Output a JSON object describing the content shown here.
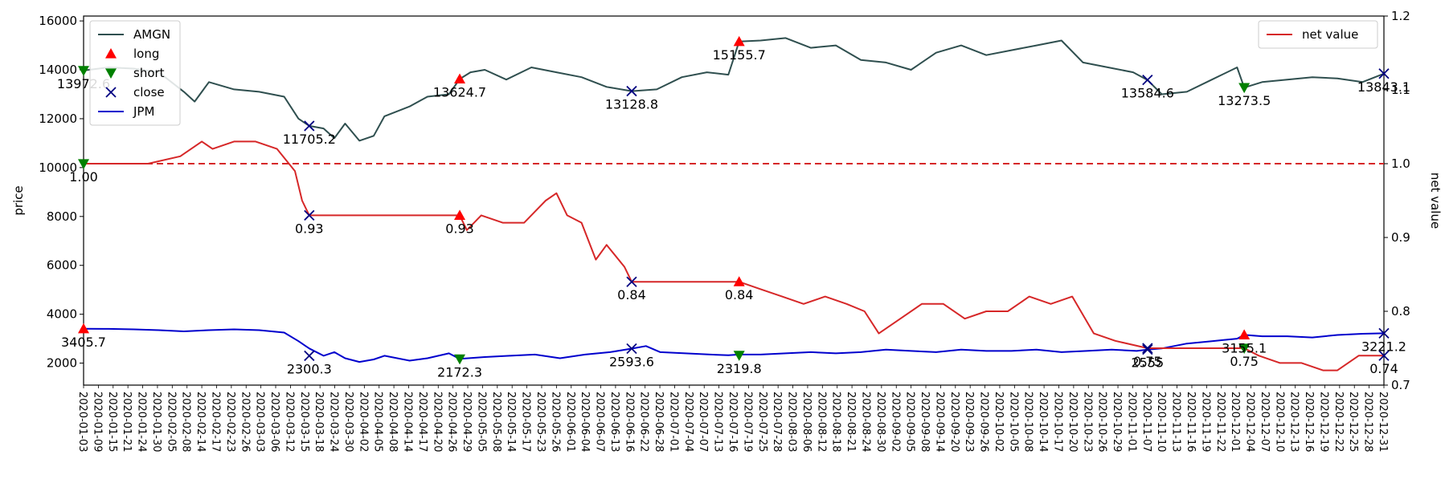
{
  "chart_data": {
    "type": "line",
    "xlabel": "",
    "ylabel": "price",
    "ylabel_right": "net value",
    "ylim": [
      1100,
      16200
    ],
    "ylim_right": [
      0.7,
      1.2
    ],
    "yticks": [
      2000,
      4000,
      6000,
      8000,
      10000,
      12000,
      14000,
      16000
    ],
    "yticks_right": [
      0.7,
      0.8,
      0.9,
      1.0,
      1.1,
      1.2
    ],
    "yticks_right_labels": [
      "0.7",
      "0.8",
      "0.9",
      "1.0",
      "1.1",
      "1.2"
    ],
    "x_start": "2020-01-03",
    "x_end": "2020-12-31",
    "x_tick_labels": [
      "2020-01-03",
      "2020-01-09",
      "2020-01-15",
      "2020-01-21",
      "2020-01-24",
      "2020-01-30",
      "2020-02-05",
      "2020-02-08",
      "2020-02-14",
      "2020-02-17",
      "2020-02-23",
      "2020-02-26",
      "2020-03-03",
      "2020-03-06",
      "2020-03-12",
      "2020-03-15",
      "2020-03-18",
      "2020-03-24",
      "2020-03-30",
      "2020-04-02",
      "2020-04-05",
      "2020-04-08",
      "2020-04-14",
      "2020-04-17",
      "2020-04-20",
      "2020-04-26",
      "2020-04-29",
      "2020-05-05",
      "2020-05-08",
      "2020-05-14",
      "2020-05-17",
      "2020-05-23",
      "2020-05-26",
      "2020-06-01",
      "2020-06-04",
      "2020-06-07",
      "2020-06-13",
      "2020-06-16",
      "2020-06-22",
      "2020-06-28",
      "2020-07-01",
      "2020-07-04",
      "2020-07-07",
      "2020-07-13",
      "2020-07-16",
      "2020-07-19",
      "2020-07-25",
      "2020-07-28",
      "2020-08-03",
      "2020-08-06",
      "2020-08-12",
      "2020-08-18",
      "2020-08-21",
      "2020-08-24",
      "2020-08-30",
      "2020-09-02",
      "2020-09-05",
      "2020-09-08",
      "2020-09-14",
      "2020-09-20",
      "2020-09-23",
      "2020-09-26",
      "2020-10-02",
      "2020-10-05",
      "2020-10-08",
      "2020-10-14",
      "2020-10-17",
      "2020-10-20",
      "2020-10-23",
      "2020-10-26",
      "2020-10-29",
      "2020-11-01",
      "2020-11-07",
      "2020-11-10",
      "2020-11-13",
      "2020-11-16",
      "2020-11-19",
      "2020-11-22",
      "2020-12-01",
      "2020-12-04",
      "2020-12-07",
      "2020-12-10",
      "2020-12-13",
      "2020-12-16",
      "2020-12-19",
      "2020-12-22",
      "2020-12-25",
      "2020-12-28",
      "2020-12-31"
    ],
    "legend_left": {
      "placement": "top-left",
      "entries": [
        {
          "label": "AMGN",
          "kind": "line",
          "color": "#2f4f4f"
        },
        {
          "label": "long",
          "kind": "marker-up",
          "color": "#ff0000"
        },
        {
          "label": "short",
          "kind": "marker-down",
          "color": "#008000"
        },
        {
          "label": "close",
          "kind": "marker-x",
          "color": "#000080"
        },
        {
          "label": "JPM",
          "kind": "line",
          "color": "#0000cd"
        }
      ]
    },
    "legend_right": {
      "placement": "top-right",
      "entries": [
        {
          "label": "net value",
          "kind": "line",
          "color": "#d62728"
        }
      ]
    },
    "reference_line": {
      "axis": "right",
      "y": 1.0,
      "style": "dashed",
      "color": "#d62728"
    },
    "series": [
      {
        "name": "AMGN",
        "axis": "left",
        "color": "#2f4f4f",
        "x": [
          "2020-01-03",
          "2020-01-10",
          "2020-01-17",
          "2020-01-24",
          "2020-01-31",
          "2020-02-03",
          "2020-02-07",
          "2020-02-14",
          "2020-02-21",
          "2020-02-28",
          "2020-03-03",
          "2020-03-06",
          "2020-03-10",
          "2020-03-13",
          "2020-03-16",
          "2020-03-20",
          "2020-03-24",
          "2020-03-27",
          "2020-04-03",
          "2020-04-08",
          "2020-04-14",
          "2020-04-17",
          "2020-04-20",
          "2020-04-24",
          "2020-04-30",
          "2020-05-07",
          "2020-05-14",
          "2020-05-21",
          "2020-05-28",
          "2020-06-04",
          "2020-06-11",
          "2020-06-18",
          "2020-06-25",
          "2020-07-01",
          "2020-07-04",
          "2020-07-10",
          "2020-07-17",
          "2020-07-24",
          "2020-07-31",
          "2020-08-07",
          "2020-08-14",
          "2020-08-21",
          "2020-08-28",
          "2020-09-04",
          "2020-09-11",
          "2020-09-18",
          "2020-09-25",
          "2020-10-02",
          "2020-10-08",
          "2020-10-15",
          "2020-10-22",
          "2020-10-26",
          "2020-10-30",
          "2020-11-06",
          "2020-11-13",
          "2020-11-20",
          "2020-11-22",
          "2020-11-27",
          "2020-12-04",
          "2020-12-11",
          "2020-12-18",
          "2020-12-25",
          "2020-12-31"
        ],
        "values": [
          13972.6,
          14100,
          14050,
          13900,
          13100,
          12700,
          13500,
          13200,
          13100,
          12900,
          12000,
          11705.2,
          11600,
          11200,
          11800,
          11100,
          11300,
          12100,
          12500,
          12900,
          13000,
          13624.7,
          13900,
          14000,
          13600,
          14100,
          13900,
          13700,
          13300,
          13128.8,
          13200,
          13700,
          13900,
          13800,
          15155.7,
          15200,
          15300,
          14900,
          15000,
          14400,
          14300,
          14000,
          14700,
          15000,
          14600,
          14800,
          15000,
          15200,
          14300,
          14100,
          13900,
          13584.6,
          13000,
          13100,
          13600,
          14100,
          13273.5,
          13500,
          13600,
          13700,
          13650,
          13500,
          13843.1
        ]
      },
      {
        "name": "JPM",
        "axis": "left",
        "color": "#0000cd",
        "x": [
          "2020-01-03",
          "2020-01-10",
          "2020-01-17",
          "2020-01-24",
          "2020-01-31",
          "2020-02-07",
          "2020-02-14",
          "2020-02-21",
          "2020-02-28",
          "2020-03-03",
          "2020-03-06",
          "2020-03-10",
          "2020-03-13",
          "2020-03-16",
          "2020-03-20",
          "2020-03-24",
          "2020-03-27",
          "2020-04-03",
          "2020-04-08",
          "2020-04-14",
          "2020-04-17",
          "2020-04-24",
          "2020-05-01",
          "2020-05-08",
          "2020-05-15",
          "2020-05-22",
          "2020-05-29",
          "2020-06-04",
          "2020-06-08",
          "2020-06-12",
          "2020-06-19",
          "2020-06-26",
          "2020-07-01",
          "2020-07-04",
          "2020-07-10",
          "2020-07-17",
          "2020-07-24",
          "2020-07-31",
          "2020-08-07",
          "2020-08-14",
          "2020-08-21",
          "2020-08-28",
          "2020-09-04",
          "2020-09-11",
          "2020-09-18",
          "2020-09-25",
          "2020-10-02",
          "2020-10-09",
          "2020-10-16",
          "2020-10-23",
          "2020-10-26",
          "2020-10-30",
          "2020-11-06",
          "2020-11-13",
          "2020-11-20",
          "2020-11-22",
          "2020-11-27",
          "2020-12-04",
          "2020-12-11",
          "2020-12-18",
          "2020-12-25",
          "2020-12-31"
        ],
        "values": [
          3405.7,
          3400,
          3380,
          3350,
          3300,
          3350,
          3380,
          3350,
          3250,
          2900,
          2600,
          2300.3,
          2450,
          2200,
          2050,
          2150,
          2300,
          2100,
          2200,
          2400,
          2172.3,
          2250,
          2300,
          2350,
          2200,
          2350,
          2450,
          2593.6,
          2700,
          2450,
          2400,
          2350,
          2319.8,
          2350,
          2350,
          2400,
          2450,
          2400,
          2450,
          2550,
          2500,
          2450,
          2550,
          2500,
          2500,
          2550,
          2450,
          2500,
          2550,
          2500,
          2555,
          2600,
          2800,
          2900,
          3000,
          3155.1,
          3100,
          3100,
          3050,
          3150,
          3200,
          3221.2
        ]
      },
      {
        "name": "net value",
        "axis": "right",
        "color": "#d62728",
        "x": [
          "2020-01-03",
          "2020-01-09",
          "2020-01-15",
          "2020-01-21",
          "2020-01-30",
          "2020-02-05",
          "2020-02-08",
          "2020-02-14",
          "2020-02-20",
          "2020-02-26",
          "2020-03-02",
          "2020-03-04",
          "2020-03-06",
          "2020-04-17",
          "2020-04-19",
          "2020-04-23",
          "2020-04-29",
          "2020-05-05",
          "2020-05-11",
          "2020-05-14",
          "2020-05-17",
          "2020-05-21",
          "2020-05-25",
          "2020-05-28",
          "2020-06-02",
          "2020-06-04",
          "2020-07-04",
          "2020-07-10",
          "2020-07-16",
          "2020-07-22",
          "2020-07-28",
          "2020-08-03",
          "2020-08-08",
          "2020-08-12",
          "2020-08-18",
          "2020-08-24",
          "2020-08-30",
          "2020-09-05",
          "2020-09-11",
          "2020-09-17",
          "2020-09-23",
          "2020-09-29",
          "2020-10-05",
          "2020-10-11",
          "2020-10-17",
          "2020-10-26",
          "2020-11-22",
          "2020-11-26",
          "2020-12-02",
          "2020-12-08",
          "2020-12-14",
          "2020-12-18",
          "2020-12-24",
          "2020-12-31"
        ],
        "values": [
          1.0,
          1.0,
          1.0,
          1.0,
          1.01,
          1.03,
          1.02,
          1.03,
          1.03,
          1.02,
          0.99,
          0.95,
          0.93,
          0.93,
          0.91,
          0.93,
          0.92,
          0.92,
          0.95,
          0.96,
          0.93,
          0.92,
          0.87,
          0.89,
          0.86,
          0.84,
          0.84,
          0.83,
          0.82,
          0.81,
          0.82,
          0.81,
          0.8,
          0.77,
          0.79,
          0.81,
          0.81,
          0.79,
          0.8,
          0.8,
          0.82,
          0.81,
          0.82,
          0.77,
          0.76,
          0.75,
          0.75,
          0.74,
          0.73,
          0.73,
          0.72,
          0.72,
          0.74,
          0.74
        ]
      }
    ],
    "markers": [
      {
        "type": "short",
        "axis": "left",
        "x": "2020-01-03",
        "y": 13972.6,
        "label": "13972.6"
      },
      {
        "type": "close",
        "axis": "left",
        "x": "2020-03-06",
        "y": 11705.2,
        "label": "11705.2"
      },
      {
        "type": "long",
        "axis": "left",
        "x": "2020-04-17",
        "y": 13624.7,
        "label": "13624.7"
      },
      {
        "type": "close",
        "axis": "left",
        "x": "2020-06-04",
        "y": 13128.8,
        "label": "13128.8"
      },
      {
        "type": "long",
        "axis": "left",
        "x": "2020-07-04",
        "y": 15155.7,
        "label": "15155.7"
      },
      {
        "type": "close",
        "axis": "left",
        "x": "2020-10-26",
        "y": 13584.6,
        "label": "13584.6"
      },
      {
        "type": "short",
        "axis": "left",
        "x": "2020-11-22",
        "y": 13273.5,
        "label": "13273.5"
      },
      {
        "type": "close",
        "axis": "left",
        "x": "2020-12-31",
        "y": 13843.1,
        "label": "13843.1"
      },
      {
        "type": "long",
        "axis": "left",
        "x": "2020-01-03",
        "y": 3405.7,
        "label": "3405.7"
      },
      {
        "type": "close",
        "axis": "left",
        "x": "2020-03-06",
        "y": 2300.3,
        "label": "2300.3"
      },
      {
        "type": "short",
        "axis": "left",
        "x": "2020-04-17",
        "y": 2172.3,
        "label": "2172.3"
      },
      {
        "type": "close",
        "axis": "left",
        "x": "2020-06-04",
        "y": 2593.6,
        "label": "2593.6"
      },
      {
        "type": "short",
        "axis": "left",
        "x": "2020-07-04",
        "y": 2319.8,
        "label": "2319.8"
      },
      {
        "type": "close",
        "axis": "left",
        "x": "2020-10-26",
        "y": 2555,
        "label": "2555"
      },
      {
        "type": "long",
        "axis": "left",
        "x": "2020-11-22",
        "y": 3155.1,
        "label": "3155.1"
      },
      {
        "type": "close",
        "axis": "left",
        "x": "2020-12-31",
        "y": 3221.2,
        "label": "3221.2"
      },
      {
        "type": "short",
        "axis": "right",
        "x": "2020-01-03",
        "y": 1.0,
        "label": "1.00"
      },
      {
        "type": "close",
        "axis": "right",
        "x": "2020-03-06",
        "y": 0.93,
        "label": "0.93"
      },
      {
        "type": "long",
        "axis": "right",
        "x": "2020-04-17",
        "y": 0.93,
        "label": "0.93"
      },
      {
        "type": "close",
        "axis": "right",
        "x": "2020-06-04",
        "y": 0.84,
        "label": "0.84"
      },
      {
        "type": "long",
        "axis": "right",
        "x": "2020-07-04",
        "y": 0.84,
        "label": "0.84"
      },
      {
        "type": "close",
        "axis": "right",
        "x": "2020-10-26",
        "y": 0.75,
        "label": "0.75"
      },
      {
        "type": "short",
        "axis": "right",
        "x": "2020-11-22",
        "y": 0.75,
        "label": "0.75"
      },
      {
        "type": "close",
        "axis": "right",
        "x": "2020-12-31",
        "y": 0.74,
        "label": "0.74"
      }
    ],
    "marker_colors": {
      "long": "#ff0000",
      "short": "#008000",
      "close": "#000080"
    }
  }
}
